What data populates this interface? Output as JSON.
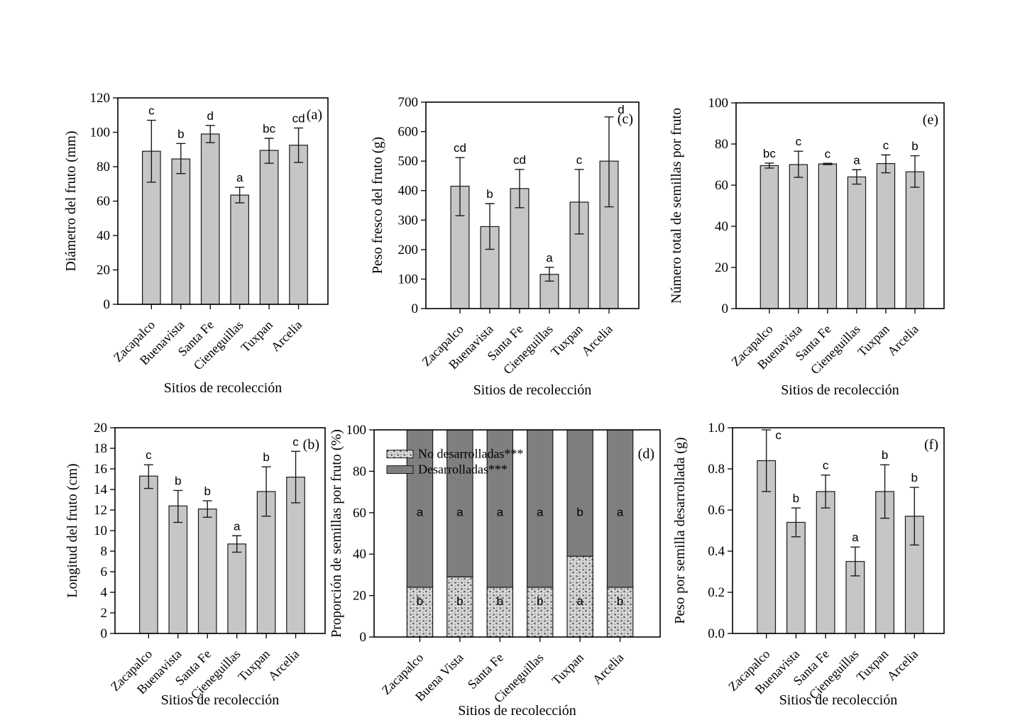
{
  "figure": {
    "x_axis_title": "Sitios de recolección",
    "sites": [
      "Zacapalco",
      "Buenavista",
      "Santa Fe",
      "Cieneguillas",
      "Tuxpan",
      "Arcelia"
    ]
  },
  "colors": {
    "bar_fill": "#c6c6c6",
    "bar_stroke": "#1a1a1a",
    "developed_fill": "#7f7f7f",
    "undeveloped_fill": "#d8d8d8",
    "axis_color": "#000000",
    "text_color": "#000000"
  },
  "chart_data": [
    {
      "id": "a",
      "panel_label": "(a)",
      "type": "bar",
      "title": "",
      "ylabel": "Diámetro del fruto (mm)",
      "xlabel": "Sitios de recolección",
      "ylim": [
        0,
        120
      ],
      "ytick_step": 20,
      "ytick_decimals": 0,
      "grid": false,
      "categories": [
        "Zacapalco",
        "Buenavista",
        "Santa Fe",
        "Cieneguillas",
        "Tuxpan",
        "Arcelia"
      ],
      "values": [
        89,
        84.5,
        99,
        63.5,
        89.5,
        92.5
      ],
      "err_low": [
        71,
        76,
        94,
        59,
        82,
        82.5
      ],
      "err_high": [
        107,
        93.5,
        104,
        68,
        96.5,
        102.5
      ],
      "letters": [
        "c",
        "b",
        "d",
        "a",
        "bc",
        "cd"
      ]
    },
    {
      "id": "c",
      "panel_label": "(c)",
      "type": "bar",
      "title": "",
      "ylabel": "Peso fresco del fruto (g)",
      "xlabel": "Sitios de recolección",
      "ylim": [
        0,
        700
      ],
      "ytick_step": 100,
      "ytick_decimals": 0,
      "grid": false,
      "categories": [
        "Zacapalco",
        "Buenavista",
        "Santa Fe",
        "Cieneguillas",
        "Tuxpan",
        "Arcelia"
      ],
      "values": [
        415,
        278,
        407,
        116,
        361,
        500
      ],
      "err_low": [
        315,
        201,
        342,
        93,
        253,
        345
      ],
      "err_high": [
        512,
        356,
        472,
        140,
        472,
        650
      ],
      "letters": [
        "cd",
        "b",
        "cd",
        "a",
        "c",
        "d"
      ]
    },
    {
      "id": "e",
      "panel_label": "(e)",
      "type": "bar",
      "title": "",
      "ylabel": "Número total de semillas por fruto",
      "xlabel": "Sitios de recolección",
      "ylim": [
        0,
        100
      ],
      "ytick_step": 20,
      "ytick_decimals": 0,
      "grid": false,
      "categories": [
        "Zacapalco",
        "Buenavista",
        "Santa Fe",
        "Cieneguillas",
        "Tuxpan",
        "Arcelia"
      ],
      "values": [
        69.5,
        70,
        70.3,
        64,
        70.5,
        66.5
      ],
      "err_low": [
        68.3,
        63.8,
        70,
        60.5,
        66,
        59
      ],
      "err_high": [
        70.7,
        76.5,
        70.6,
        67.5,
        74.7,
        74.3
      ],
      "letters": [
        "bc",
        "c",
        "c",
        "a",
        "c",
        "b"
      ]
    },
    {
      "id": "b",
      "panel_label": "(b)",
      "type": "bar",
      "title": "",
      "ylabel": "Longitud del fruto (cm)",
      "xlabel": "Sitios de recolección",
      "ylim": [
        0,
        20
      ],
      "ytick_step": 2,
      "ytick_decimals": 0,
      "grid": false,
      "categories": [
        "Zacapalco",
        "Buenavista",
        "Santa Fe",
        "Cieneguillas",
        "Tuxpan",
        "Arcelia"
      ],
      "values": [
        15.3,
        12.4,
        12.1,
        8.7,
        13.8,
        15.2
      ],
      "err_low": [
        14.1,
        10.8,
        11.3,
        7.9,
        11.4,
        12.7
      ],
      "err_high": [
        16.4,
        13.9,
        12.9,
        9.5,
        16.2,
        17.7
      ],
      "letters": [
        "c",
        "b",
        "b",
        "a",
        "b",
        "c"
      ]
    },
    {
      "id": "d",
      "panel_label": "(d)",
      "type": "stacked_bar",
      "title": "",
      "ylabel": "Proporción de semillas por fruto (%)",
      "xlabel": "Sitios de recolección",
      "ylim": [
        0,
        100
      ],
      "ytick_step": 20,
      "ytick_decimals": 0,
      "grid": false,
      "legend_position": "upper-left",
      "categories": [
        "Zacapalco",
        "Buena Vista",
        "Santa Fe",
        "Cieneguillas",
        "Tuxpan",
        "Arcelia"
      ],
      "series": [
        {
          "name": "No desarrolladas***",
          "style": "stipple",
          "values": [
            24,
            29,
            24,
            24,
            39,
            24
          ],
          "letters": [
            "b",
            "b",
            "b",
            "b",
            "a",
            "b"
          ]
        },
        {
          "name": "Desarrolladas***",
          "style": "solid",
          "values": [
            76,
            71,
            76,
            76,
            61,
            76
          ],
          "letters": [
            "a",
            "a",
            "a",
            "a",
            "b",
            "a"
          ]
        }
      ]
    },
    {
      "id": "f",
      "panel_label": "(f)",
      "type": "bar",
      "title": "",
      "ylabel": "Peso por semilla desarrollada (g)",
      "xlabel": "Sitios de recolección",
      "ylim": [
        0,
        1.0
      ],
      "ytick_step": 0.2,
      "ytick_decimals": 1,
      "grid": false,
      "categories": [
        "Zacapalco",
        "Buenavista",
        "Santa Fe",
        "Cieneguillas",
        "Tuxpan",
        "Arcelia"
      ],
      "values": [
        0.84,
        0.54,
        0.69,
        0.35,
        0.69,
        0.57
      ],
      "err_low": [
        0.69,
        0.47,
        0.61,
        0.28,
        0.56,
        0.43
      ],
      "err_high": [
        0.99,
        0.61,
        0.77,
        0.42,
        0.82,
        0.71
      ],
      "letters": [
        "c",
        "b",
        "c",
        "a",
        "b",
        "b"
      ]
    }
  ]
}
